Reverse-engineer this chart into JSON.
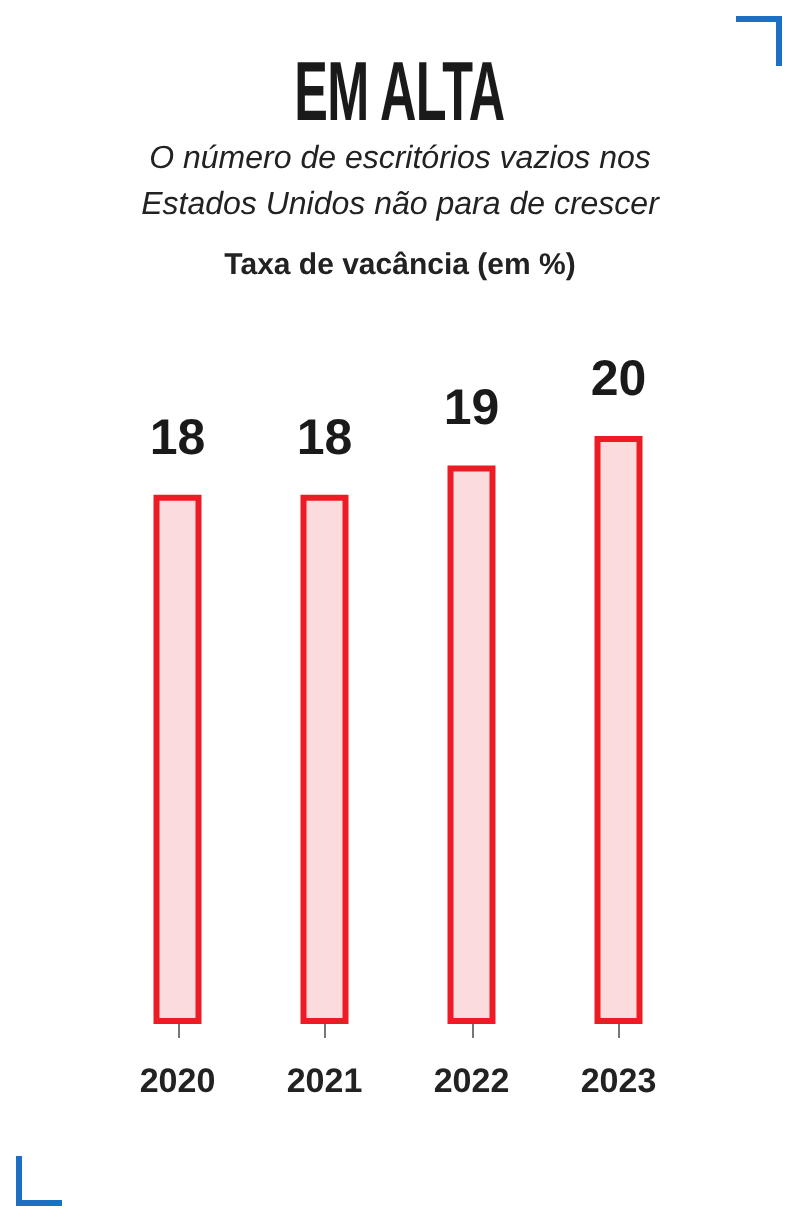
{
  "chart_data": {
    "type": "bar",
    "title": "EM ALTA",
    "subtitle": "O número de escritórios vazios nos Estados Unidos não para de crescer",
    "annotations": [
      "Taxa de vacância (em %)"
    ],
    "categories": [
      "2020",
      "2021",
      "2022",
      "2023"
    ],
    "values": [
      18,
      18,
      19,
      20
    ],
    "color": "#ed1c24",
    "data_labels": true,
    "tick_labels": "x"
  }
}
